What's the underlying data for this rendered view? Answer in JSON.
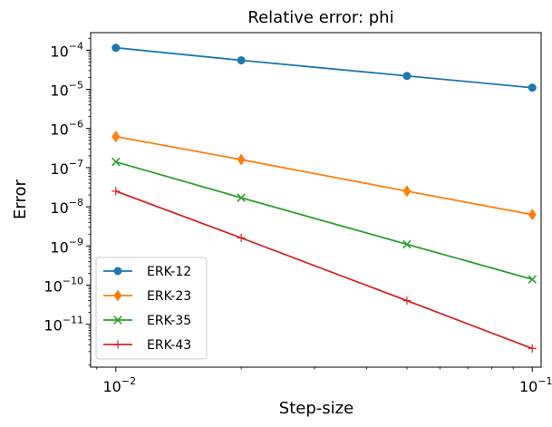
{
  "chart_data": {
    "type": "line",
    "title": "Relative error: phi",
    "xlabel": "Step-size",
    "ylabel": "Error",
    "xscale": "log",
    "yscale": "log",
    "xlim": [
      0.0087,
      0.105
    ],
    "ylim": [
      8e-13,
      0.00028
    ],
    "grid": false,
    "legend_position": "lower-left",
    "x": [
      0.01,
      0.02,
      0.05,
      0.1
    ],
    "x_ticks": [
      {
        "value": 0.01,
        "base": "10",
        "exp": "−2"
      },
      {
        "value": 0.1,
        "base": "10",
        "exp": "−1"
      }
    ],
    "y_ticks": [
      {
        "value": 0.0001,
        "base": "10",
        "exp": "−4"
      },
      {
        "value": 1e-05,
        "base": "10",
        "exp": "−5"
      },
      {
        "value": 1e-06,
        "base": "10",
        "exp": "−6"
      },
      {
        "value": 1e-07,
        "base": "10",
        "exp": "−7"
      },
      {
        "value": 1e-08,
        "base": "10",
        "exp": "−8"
      },
      {
        "value": 1e-09,
        "base": "10",
        "exp": "−9"
      },
      {
        "value": 1e-10,
        "base": "10",
        "exp": "−10"
      },
      {
        "value": 1e-11,
        "base": "10",
        "exp": "−11"
      }
    ],
    "series": [
      {
        "name": "ERK-12",
        "color": "#1f77b4",
        "marker": "circle",
        "values": [
          0.000115,
          5.5e-05,
          2.2e-05,
          1.1e-05
        ]
      },
      {
        "name": "ERK-23",
        "color": "#ff7f0e",
        "marker": "diamond",
        "values": [
          6.2e-07,
          1.6e-07,
          2.5e-08,
          6.3e-09
        ]
      },
      {
        "name": "ERK-35",
        "color": "#2ca02c",
        "marker": "x",
        "values": [
          1.4e-07,
          1.7e-08,
          1.1e-09,
          1.4e-10
        ]
      },
      {
        "name": "ERK-43",
        "color": "#d62728",
        "marker": "tri",
        "values": [
          2.5e-08,
          1.6e-09,
          4e-11,
          2.4e-12
        ]
      }
    ]
  }
}
